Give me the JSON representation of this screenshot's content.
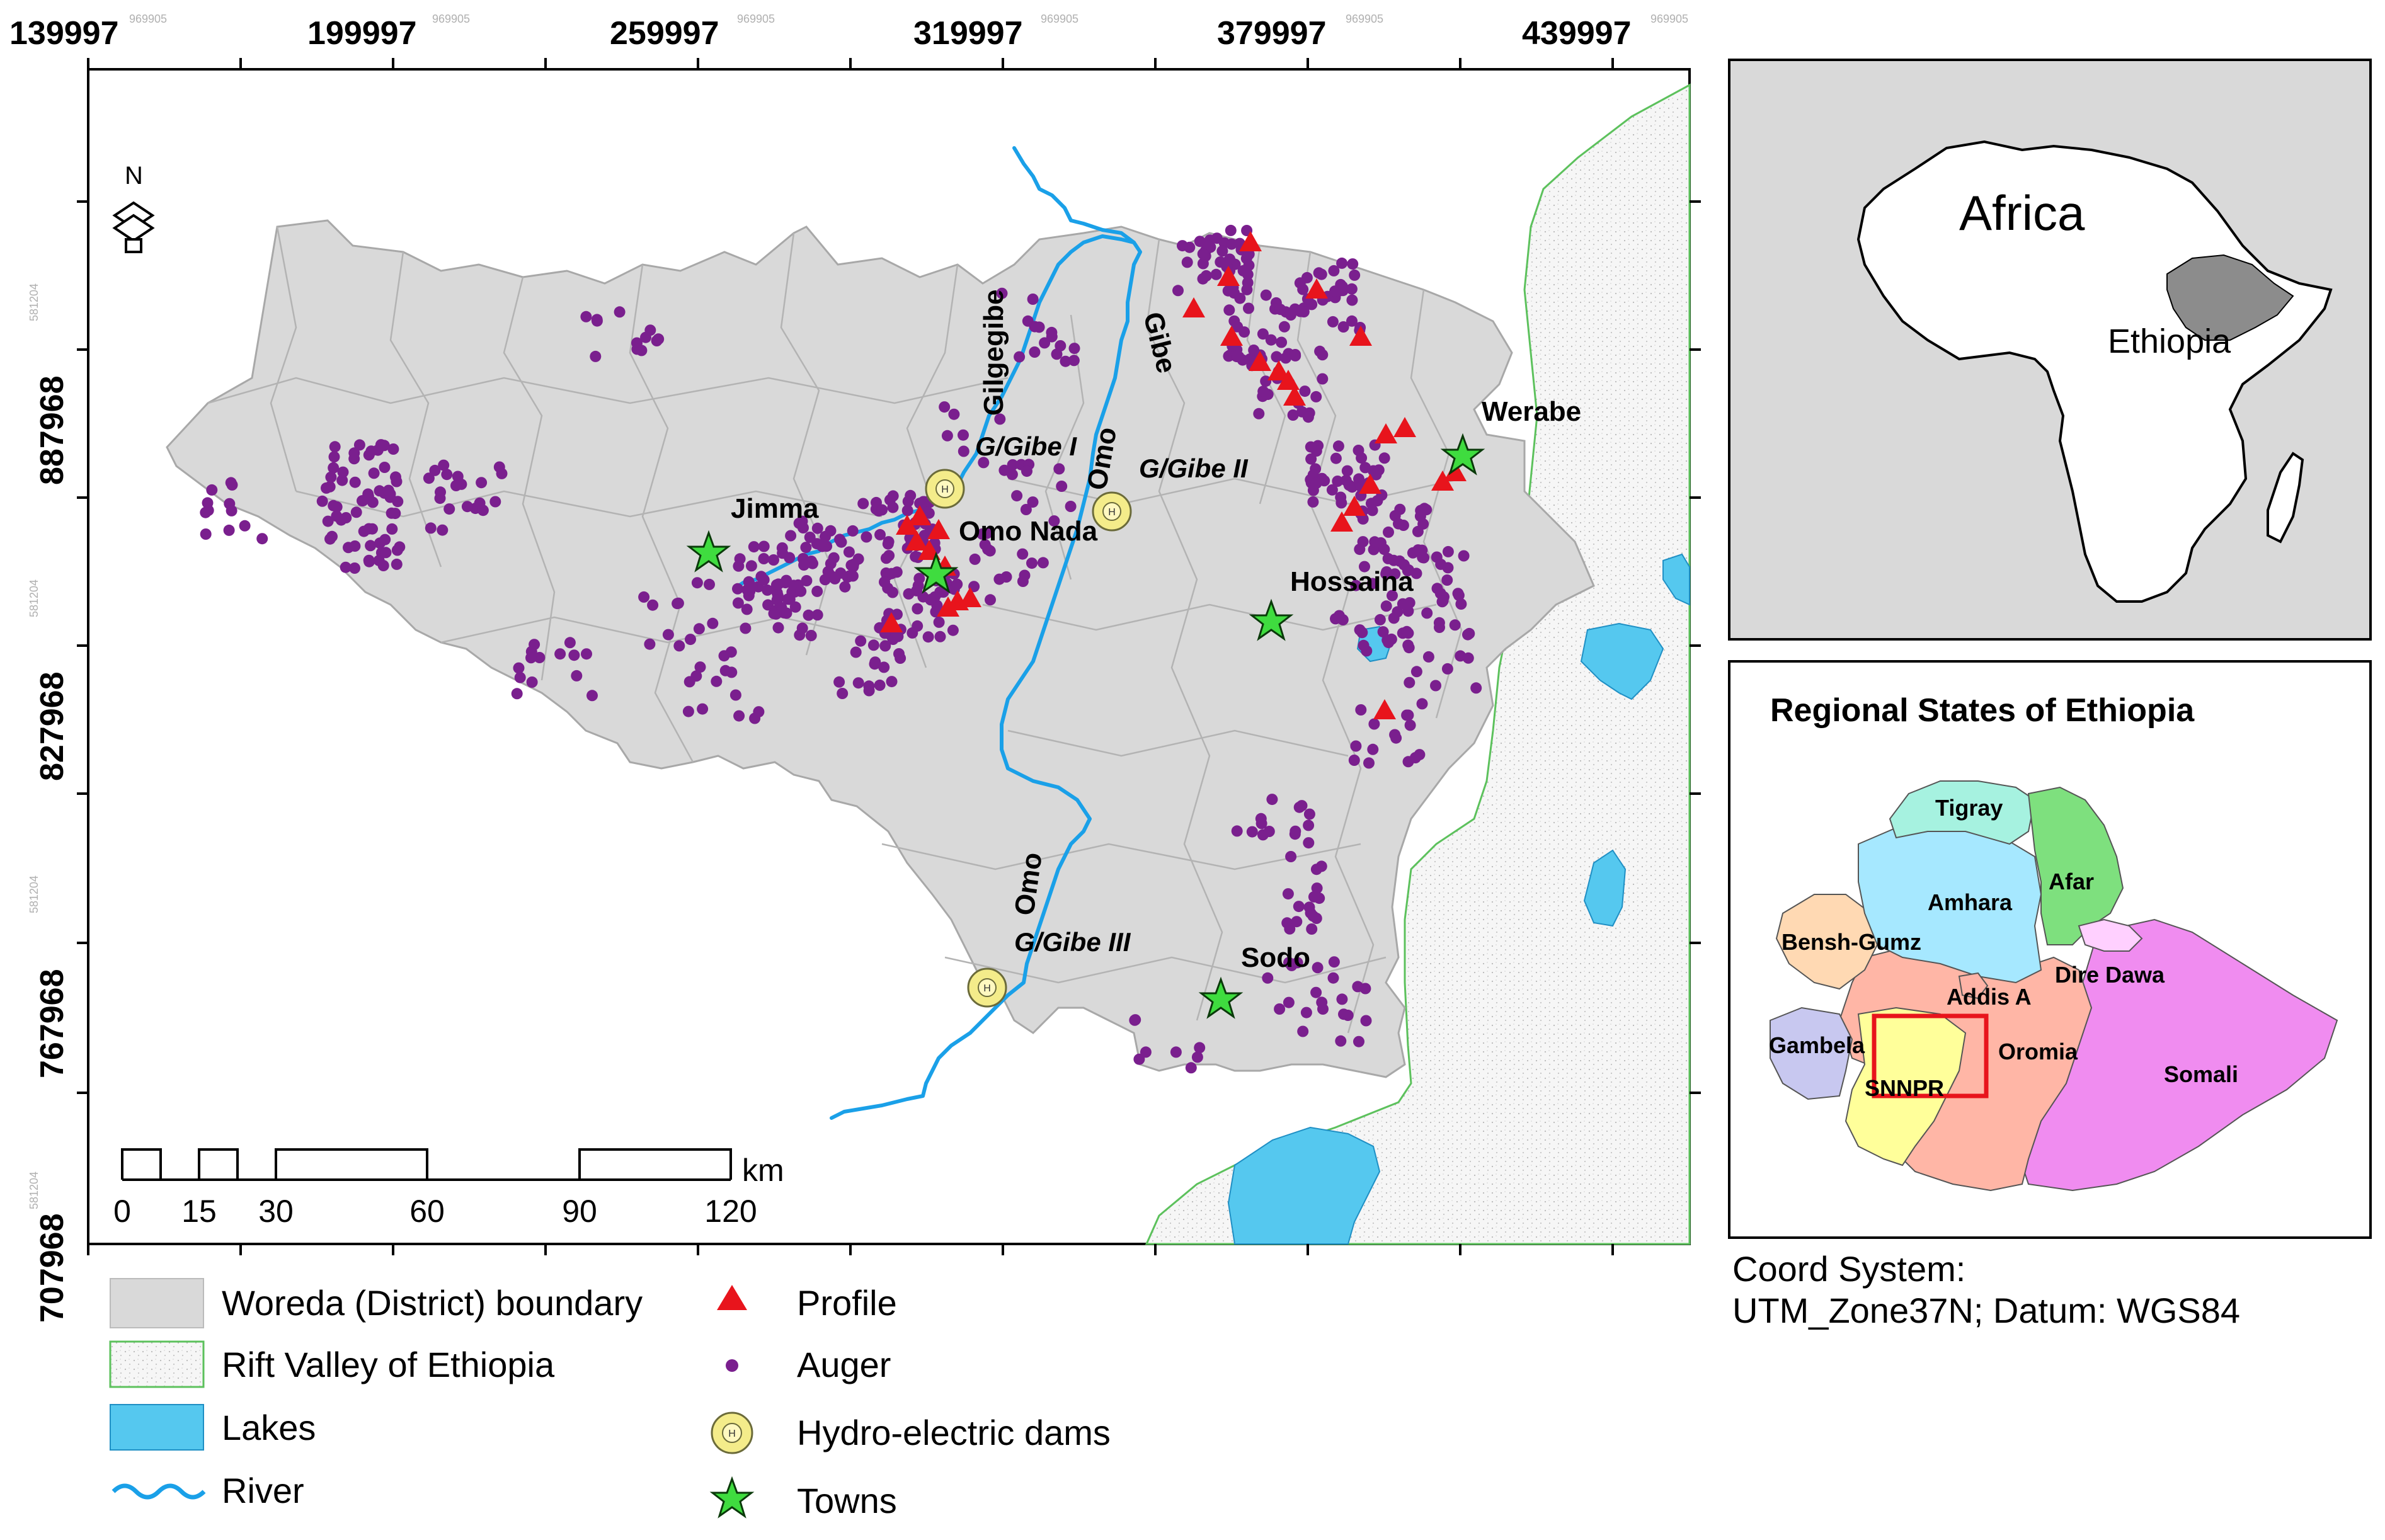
{
  "main_map": {
    "top_coords": [
      "139997",
      "199997",
      "259997",
      "319997",
      "379997",
      "439997"
    ],
    "left_coords": [
      "887968",
      "827968",
      "767968",
      "707968"
    ],
    "faint_coord_top": "969905",
    "faint_coord_left": "581204",
    "north_label": "N",
    "rivers": {
      "gilgegibe": "Gilgegibe",
      "gibe": "Gibe",
      "omo_north": "Omo",
      "omo_south": "Omo"
    },
    "dams": {
      "gibe1": "G/Gibe I",
      "gibe2": "G/Gibe II",
      "gibe3": "G/Gibe III"
    },
    "towns": {
      "jimma": "Jimma",
      "omo_nada": "Omo Nada",
      "hossaina": "Hossaina",
      "werabe": "Werabe",
      "sodo": "Sodo"
    },
    "scale_bar": {
      "labels": [
        "0",
        "15",
        "30",
        "60",
        "90",
        "120"
      ],
      "unit": "km"
    }
  },
  "legend": {
    "items": [
      {
        "label": "Woreda (District) boundary",
        "color": "#d9d9d9"
      },
      {
        "label": "Rift Valley of Ethiopia",
        "color": "#f4f4f4"
      },
      {
        "label": "Lakes",
        "color": "#55c8ef"
      },
      {
        "label": "River",
        "color": "#1aa0e8"
      },
      {
        "label": "Profile",
        "color": "#e8141c"
      },
      {
        "label": "Auger",
        "color": "#7a1f8e"
      },
      {
        "label": "Hydro-electric dams",
        "color": "#f4ec8a"
      },
      {
        "label": "Towns",
        "color": "#3fdc3f"
      }
    ]
  },
  "africa_inset": {
    "title": "Africa",
    "country": "Ethiopia"
  },
  "regions_inset": {
    "title": "Regional States of Ethiopia",
    "regions": [
      {
        "name": "Tigray",
        "color": "#a6f2e0"
      },
      {
        "name": "Afar",
        "color": "#7ee07e"
      },
      {
        "name": "Amhara",
        "color": "#a6e8ff"
      },
      {
        "name": "Bensh-Gumz",
        "color": "#ffd9b3"
      },
      {
        "name": "Dire Dawa",
        "color": "#ffd0ff"
      },
      {
        "name": "Addis A",
        "color": "#ffb3a6"
      },
      {
        "name": "Gambela",
        "color": "#c8c8f0"
      },
      {
        "name": "Oromia",
        "color": "#ffb6a6"
      },
      {
        "name": "Somali",
        "color": "#f08cf0"
      },
      {
        "name": "SNNPR",
        "color": "#ffff9a"
      }
    ],
    "highlight_color": "#e8141c"
  },
  "coord_system": {
    "line1": "Coord System:",
    "line2": "UTM_Zone37N; Datum: WGS84"
  }
}
